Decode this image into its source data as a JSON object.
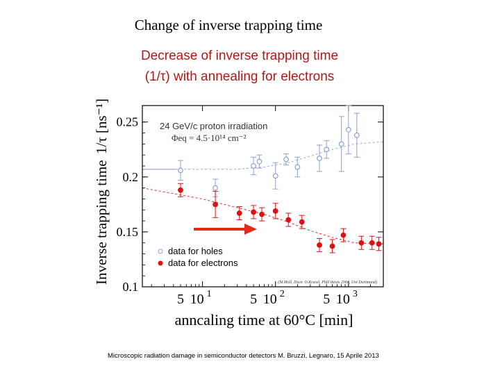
{
  "slide": {
    "title": "Change of inverse trapping time",
    "subtitle_line1": "Decrease   of  inverse  trapping  time",
    "subtitle_line2": "(1/τ) with annealing for electrons",
    "footer": "Microscopic radiation damage in semiconductor detectors  M. Bruzzi, Legnaro, 15 Aprile 2013"
  },
  "chart_data": {
    "type": "scatter",
    "ylabel_main": "Inverse trapping time",
    "ylabel_unit": "1/τ [ns⁻¹]",
    "xlabel": "anncaling time at 60°C [min]",
    "x_scale": "log",
    "xlim": [
      1.5,
      3000
    ],
    "ylim": [
      0.1,
      0.265
    ],
    "y_ticks": [
      {
        "v": 0.25,
        "label": "0.25"
      },
      {
        "v": 0.2,
        "label": "0.2"
      },
      {
        "v": 0.15,
        "label": "0.15"
      },
      {
        "v": 0.1,
        "label": "0.1"
      }
    ],
    "x_ticks": [
      {
        "v": 5,
        "label": "5"
      },
      {
        "v": 10,
        "label": "10",
        "sup": "1"
      },
      {
        "v": 50,
        "label": "5"
      },
      {
        "v": 100,
        "label": "10",
        "sup": "2"
      },
      {
        "v": 500,
        "label": "5"
      },
      {
        "v": 1000,
        "label": "10",
        "sup": "3"
      }
    ],
    "annotation_line1": "24 GeV/c proton irradiation",
    "annotation_line2": "Φeq = 4.5·10¹⁴ cm⁻²",
    "credit": "(M.Moll, Dissr. O.Krasel, PhD thesis 2004, Uni Dortmund)",
    "grid": false,
    "legend_position": "bottom-left",
    "colors": {
      "holes": "#8aa0d8",
      "electrons": "#e01010",
      "arrow": "#e02a1e",
      "axis": "#000000"
    },
    "series": [
      {
        "name": "data for holes",
        "marker": "open-circle",
        "points": [
          {
            "x": 5,
            "y": 0.206,
            "yerr": 0.009
          },
          {
            "x": 15,
            "y": 0.19,
            "yerr": 0.008
          },
          {
            "x": 50,
            "y": 0.21,
            "yerr": 0.008
          },
          {
            "x": 60,
            "y": 0.214,
            "yerr": 0.006
          },
          {
            "x": 100,
            "y": 0.201,
            "yerr": 0.012
          },
          {
            "x": 140,
            "y": 0.216,
            "yerr": 0.005
          },
          {
            "x": 200,
            "y": 0.209,
            "yerr": 0.009
          },
          {
            "x": 400,
            "y": 0.217,
            "yerr": 0.012
          },
          {
            "x": 500,
            "y": 0.225,
            "yerr": 0.008
          },
          {
            "x": 800,
            "y": 0.23,
            "yerr": 0.025
          },
          {
            "x": 1000,
            "y": 0.243,
            "yerr": 0.022
          },
          {
            "x": 1300,
            "y": 0.238,
            "yerr": 0.02
          }
        ]
      },
      {
        "name": "data for electrons",
        "marker": "filled-circle",
        "points": [
          {
            "x": 5,
            "y": 0.188,
            "yerr": 0.006
          },
          {
            "x": 15,
            "y": 0.175,
            "yerr": 0.012
          },
          {
            "x": 32,
            "y": 0.167,
            "yerr": 0.006
          },
          {
            "x": 50,
            "y": 0.168,
            "yerr": 0.006
          },
          {
            "x": 65,
            "y": 0.166,
            "yerr": 0.006
          },
          {
            "x": 100,
            "y": 0.169,
            "yerr": 0.007
          },
          {
            "x": 150,
            "y": 0.161,
            "yerr": 0.006
          },
          {
            "x": 230,
            "y": 0.159,
            "yerr": 0.006
          },
          {
            "x": 400,
            "y": 0.138,
            "yerr": 0.006
          },
          {
            "x": 600,
            "y": 0.137,
            "yerr": 0.006
          },
          {
            "x": 850,
            "y": 0.147,
            "yerr": 0.006
          },
          {
            "x": 1500,
            "y": 0.14,
            "yerr": 0.006
          },
          {
            "x": 2100,
            "y": 0.14,
            "yerr": 0.006
          },
          {
            "x": 2600,
            "y": 0.139,
            "yerr": 0.006
          }
        ]
      }
    ],
    "fit_curves": [
      {
        "series": "data for holes",
        "style": "dashed",
        "points": [
          [
            1.5,
            0.207
          ],
          [
            10,
            0.207
          ],
          [
            30,
            0.207
          ],
          [
            70,
            0.209
          ],
          [
            150,
            0.213
          ],
          [
            300,
            0.219
          ],
          [
            600,
            0.225
          ],
          [
            1200,
            0.23
          ],
          [
            3000,
            0.232
          ]
        ]
      },
      {
        "series": "data for electrons",
        "style": "dashed",
        "points": [
          [
            1.5,
            0.19
          ],
          [
            10,
            0.18
          ],
          [
            30,
            0.172
          ],
          [
            70,
            0.166
          ],
          [
            150,
            0.159
          ],
          [
            300,
            0.151
          ],
          [
            600,
            0.145
          ],
          [
            1200,
            0.14
          ],
          [
            3000,
            0.139
          ]
        ]
      }
    ]
  }
}
